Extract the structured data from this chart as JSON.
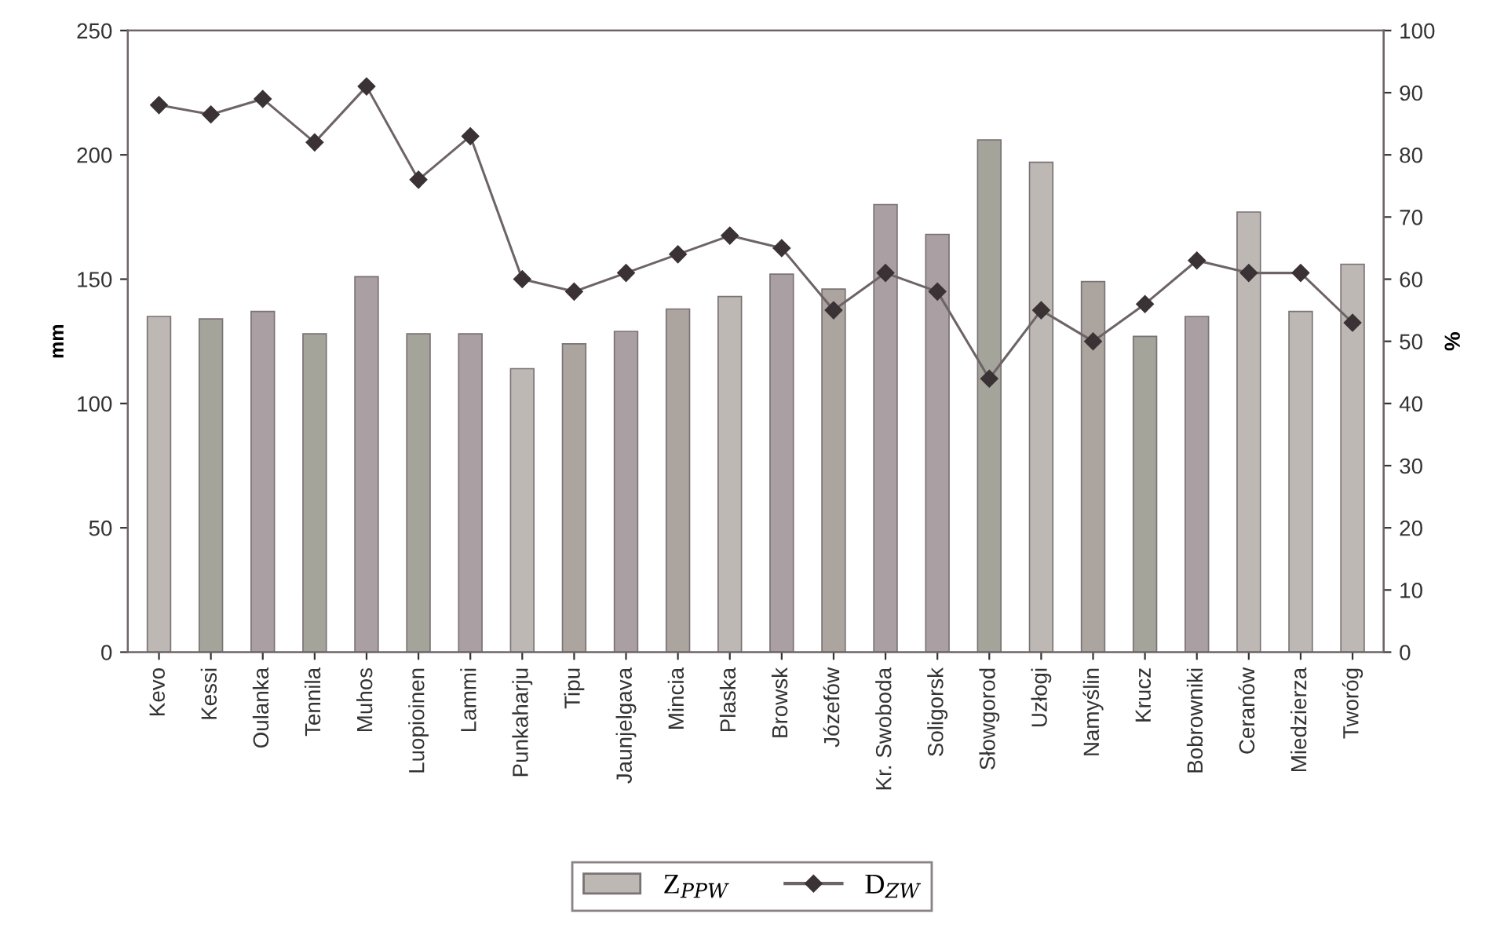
{
  "chart_data": {
    "type": "bar",
    "categories": [
      "Kevo",
      "Kessi",
      "Oulanka",
      "Tennila",
      "Muhos",
      "Luopioinen",
      "Lammi",
      "Punkaharju",
      "Tipu",
      "Jaunjelgava",
      "Mincia",
      "Plaska",
      "Browsk",
      "Józefów",
      "Kr. Swoboda",
      "Soligorsk",
      "Słowgorod",
      "Uzłogi",
      "Namyślin",
      "Krucz",
      "Bobrowniki",
      "Ceranów",
      "Miedzierza",
      "Tworóg"
    ],
    "ylabel": "mm",
    "y2label": "%",
    "ylim": [
      0,
      250
    ],
    "yticks": [
      0,
      50,
      100,
      150,
      200,
      250
    ],
    "y2lim": [
      0,
      100
    ],
    "y2ticks": [
      0,
      10,
      20,
      30,
      40,
      50,
      60,
      70,
      80,
      90,
      100
    ],
    "legend": "bottom",
    "grid": false,
    "series": [
      {
        "name": "Z$_{PPW}$",
        "color": "#bdb8b4",
        "colors": [
          "#bdb8b4",
          "#a4a49b",
          "#aa9fa2",
          "#a4a49b",
          "#aa9fa2",
          "#a4a49b",
          "#aa9fa2",
          "#bdb8b4",
          "#aca49e",
          "#aa9fa2",
          "#aca49e",
          "#bdb8b4",
          "#aa9fa2",
          "#aca49e",
          "#aa9fa2",
          "#aa9fa2",
          "#a4a49b",
          "#bdb8b4",
          "#aca49e",
          "#a4a49b",
          "#aa9fa2",
          "#bdb8b4",
          "#bdb8b4",
          "#bdb8b4"
        ],
        "values": [
          135,
          134,
          137,
          128,
          151,
          128,
          128,
          114,
          124,
          129,
          138,
          143,
          152,
          146,
          180,
          168,
          206,
          197,
          149,
          127,
          135,
          177,
          137,
          156
        ]
      },
      {
        "name": "D$_{ZW}$",
        "type": "line",
        "axis": "y2",
        "color": "#6e6468",
        "marker": "diamond",
        "line_style": "solid",
        "values": [
          88,
          86.5,
          89,
          82,
          91,
          76,
          83,
          60,
          58,
          61,
          64,
          67,
          65,
          55,
          61,
          58,
          44,
          55,
          50,
          56,
          63,
          61,
          61,
          53
        ]
      }
    ]
  }
}
